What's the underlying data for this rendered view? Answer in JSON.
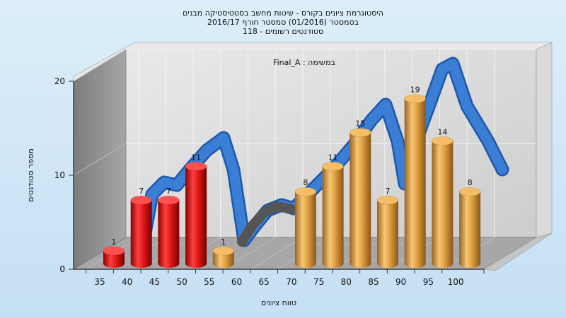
{
  "chart_data": {
    "type": "bar",
    "title": [
      "היסטוגרמת ציונים בקורס - שיטות מחשב בסטטיסטיקה מבנים",
      "בסמסטר (01/2016) סמסטר חורף 2016/17",
      "סטודנטים רשומים - 118"
    ],
    "xlabel": "טווח ציונים",
    "ylabel": "מספר סטודנטים",
    "annotation": "Final_A : במשימה",
    "categories": [
      "35",
      "40",
      "45",
      "50",
      "55",
      "60",
      "65",
      "70",
      "75",
      "80",
      "85",
      "90",
      "95",
      "100"
    ],
    "values": [
      1,
      7,
      7,
      11,
      1,
      0,
      0,
      8,
      11,
      15,
      7,
      19,
      14,
      8
    ],
    "bar_colors": [
      "red",
      "red",
      "red",
      "red",
      "orange",
      "",
      "",
      "orange",
      "orange",
      "orange",
      "orange",
      "orange",
      "orange",
      "orange"
    ],
    "ylim": [
      0,
      20
    ],
    "yticks": [
      0,
      10,
      20
    ],
    "grid": true,
    "curve": "blue distribution ribbon",
    "colors": {
      "red": "#e01818",
      "orange": "#e0a040",
      "curve": "#2f72c4",
      "floor": "#a8a8a8",
      "back": "#d8d8d8"
    }
  }
}
